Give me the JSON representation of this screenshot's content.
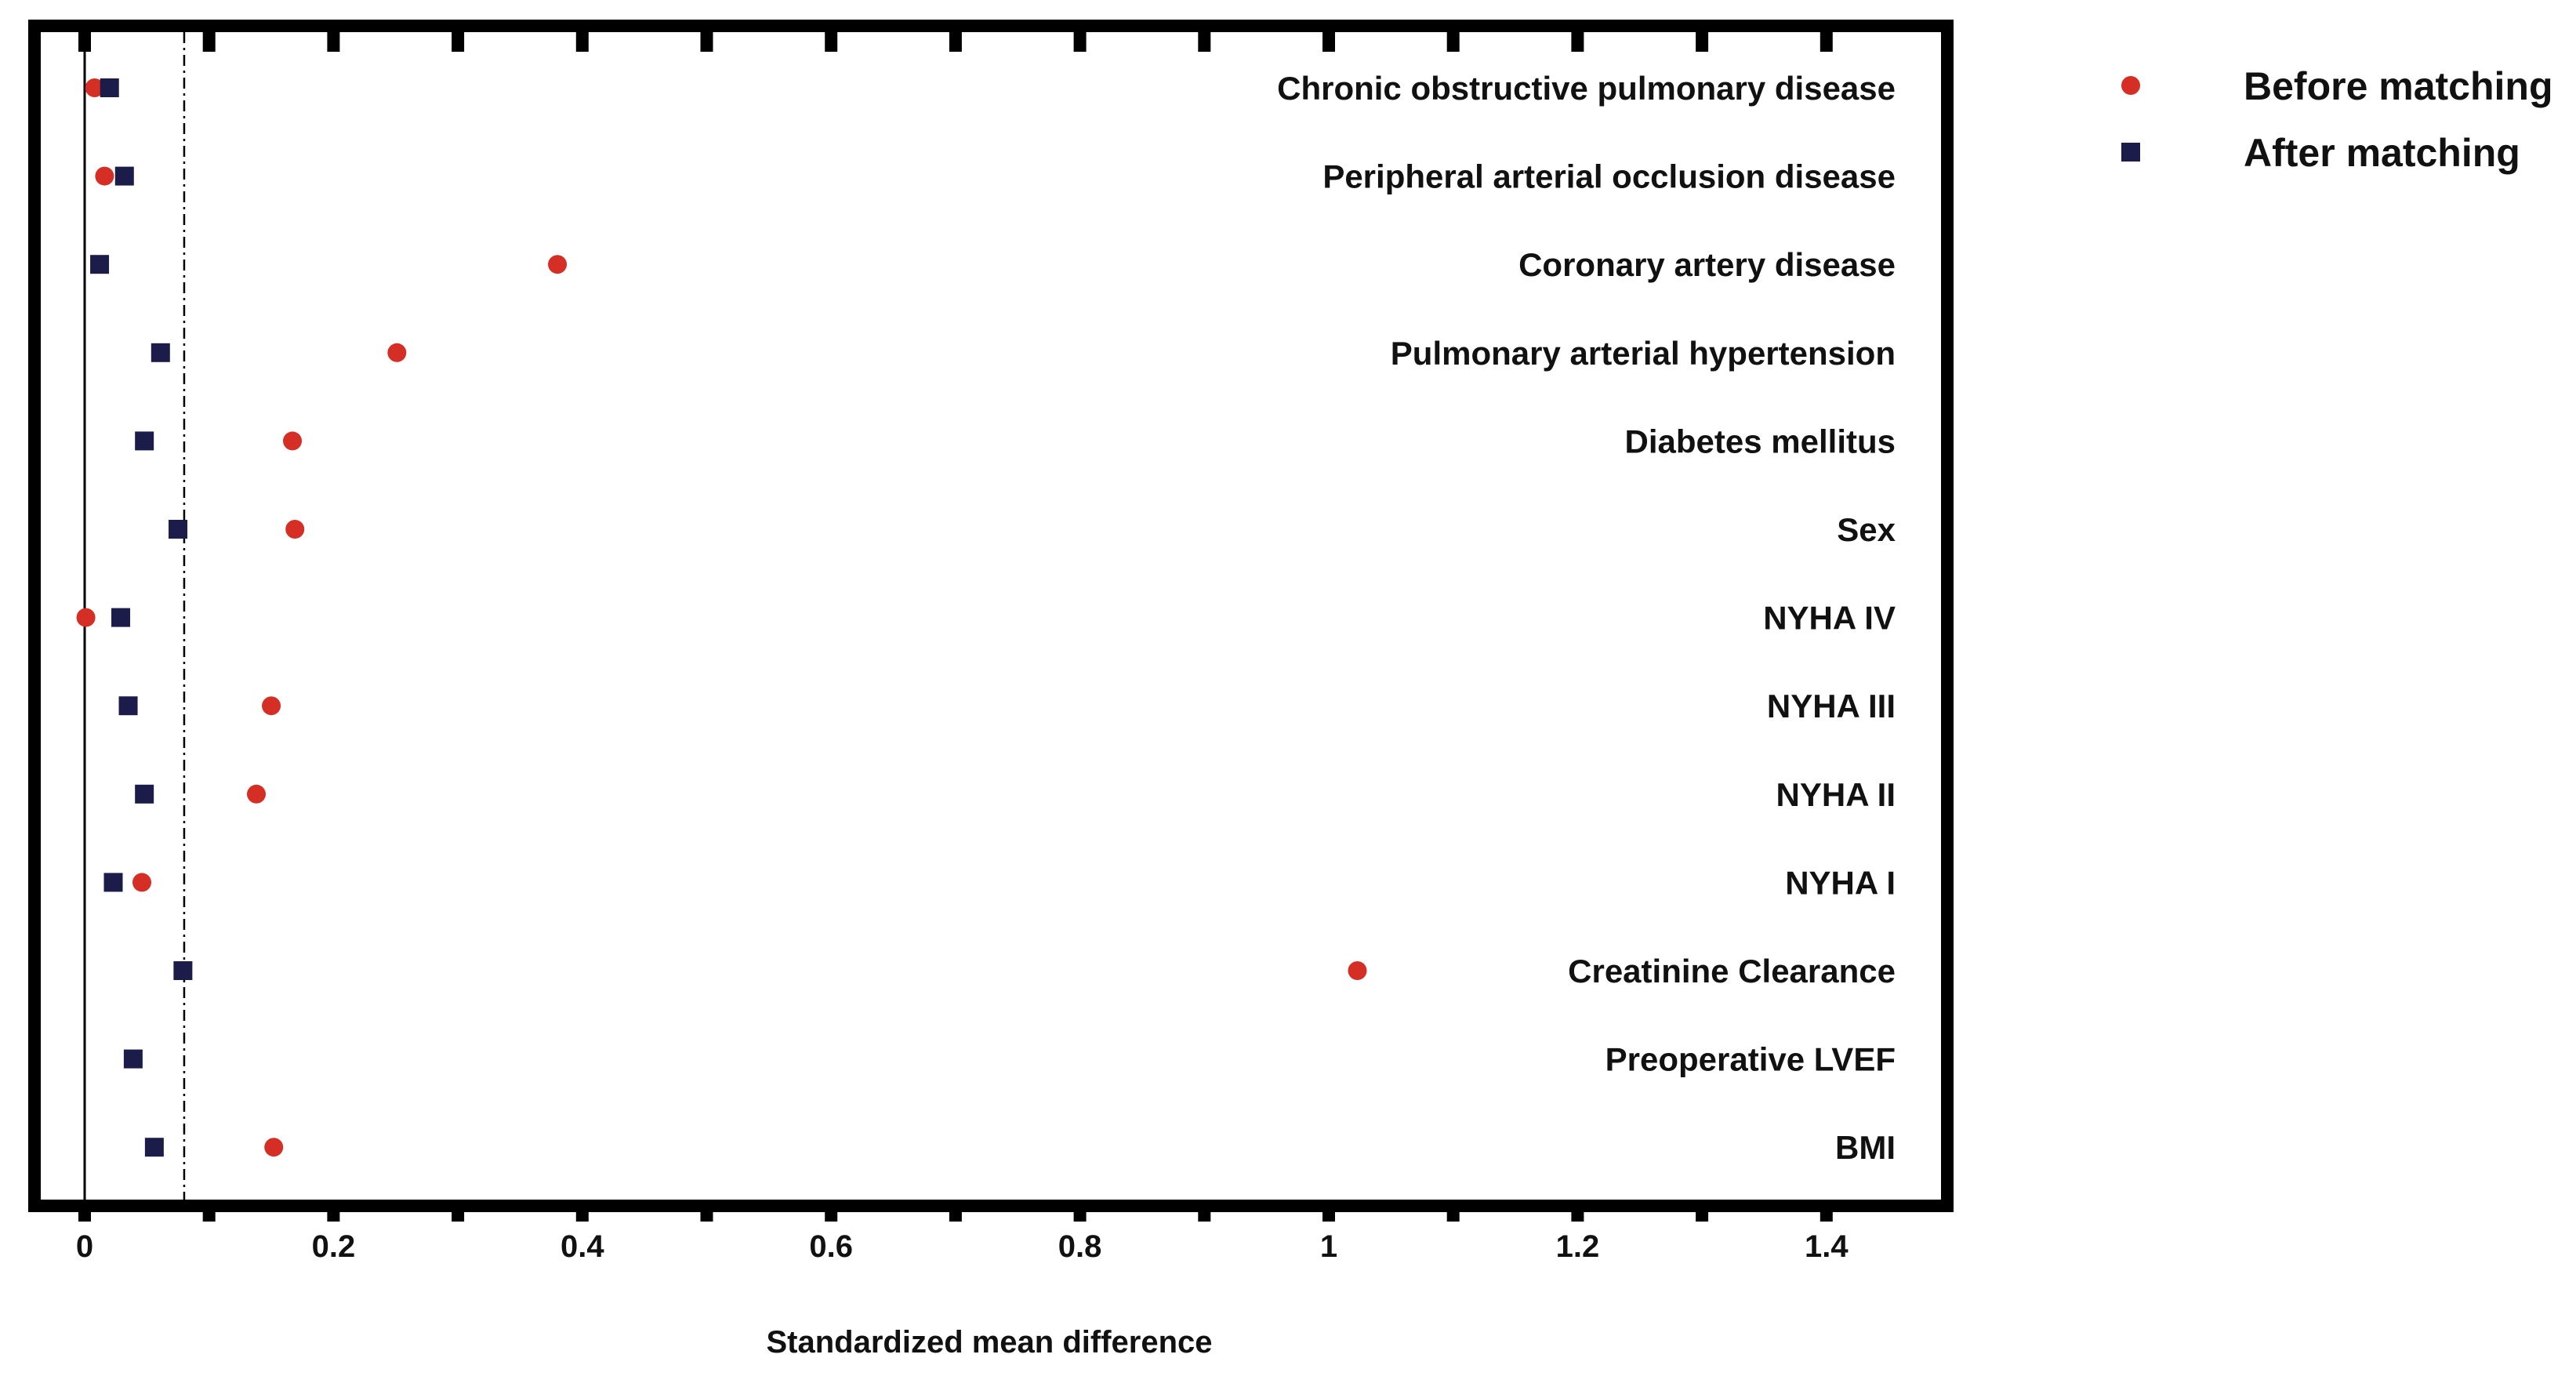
{
  "chart_data": {
    "type": "scatter",
    "xlabel": "Standardized mean difference",
    "ylabel": "",
    "xlim": [
      -0.04,
      1.505
    ],
    "x_ticks": [
      0,
      0.2,
      0.4,
      0.6,
      0.8,
      1,
      1.2,
      1.4
    ],
    "x_tick_labels": [
      "0",
      "0.2",
      "0.4",
      "0.6",
      "0.8",
      "1",
      "1.2",
      "1.4"
    ],
    "minor_tick_step": 0.1,
    "reference_lines": [
      {
        "x": 0,
        "style": "solid"
      },
      {
        "x": 0.08,
        "style": "dash-dot"
      }
    ],
    "grid": false,
    "legend_position": "right",
    "categories": [
      "Chronic obstructive pulmonary disease",
      "Peripheral arterial occlusion disease",
      "Coronary artery disease",
      "Pulmonary arterial hypertension",
      "Diabetes mellitus",
      "Sex",
      "NYHA IV",
      "NYHA III",
      "NYHA II",
      "NYHA I",
      "Creatinine Clearance",
      "Preoperative LVEF",
      "BMI"
    ],
    "series": [
      {
        "name": "Before matching",
        "marker": "circle",
        "color": "#d42e25",
        "values": [
          0.008,
          0.016,
          0.38,
          0.251,
          0.167,
          0.169,
          0.001,
          0.15,
          0.138,
          0.046,
          1.023,
          null,
          0.152
        ]
      },
      {
        "name": "After matching",
        "marker": "square",
        "color": "#1c1c4a",
        "values": [
          0.02,
          0.032,
          0.012,
          0.061,
          0.048,
          0.075,
          0.029,
          0.035,
          0.048,
          0.023,
          0.079,
          0.039,
          0.056
        ]
      }
    ]
  }
}
